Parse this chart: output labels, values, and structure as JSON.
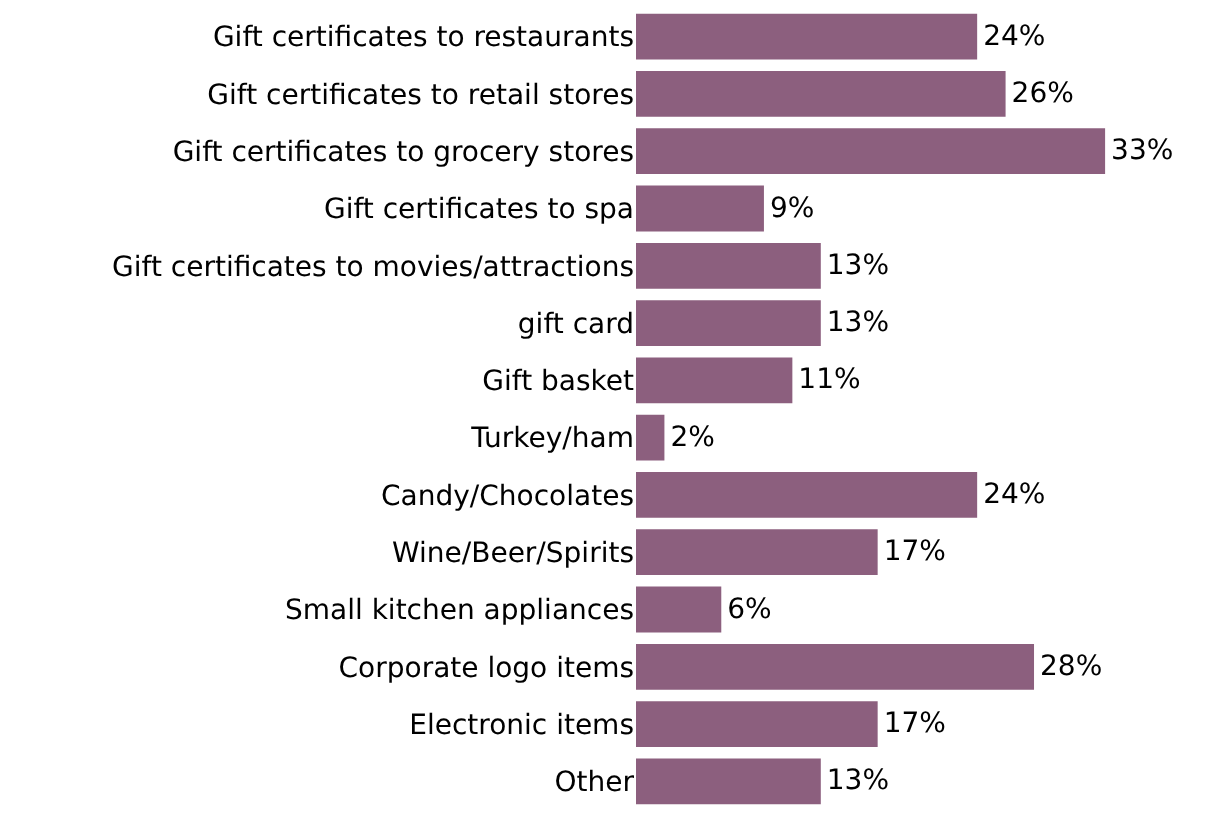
{
  "chart_data": {
    "type": "bar",
    "orientation": "horizontal",
    "categories": [
      "Gift certificates to restaurants",
      "Gift certificates to retail stores",
      "Gift certificates to grocery stores",
      "Gift certificates to spa",
      "Gift certificates to movies/attractions",
      "gift card",
      "Gift basket",
      "Turkey/ham",
      "Candy/Chocolates",
      "Wine/Beer/Spirits",
      "Small kitchen appliances",
      "Corporate logo items",
      "Electronic items",
      "Other"
    ],
    "values": [
      24,
      26,
      33,
      9,
      13,
      13,
      11,
      2,
      24,
      17,
      6,
      28,
      17,
      13
    ],
    "value_labels": [
      "24%",
      "26%",
      "33%",
      "9%",
      "13%",
      "13%",
      "11%",
      "2%",
      "24%",
      "17%",
      "6%",
      "28%",
      "17%",
      "13%"
    ],
    "color": "#8c5f7e"
  }
}
